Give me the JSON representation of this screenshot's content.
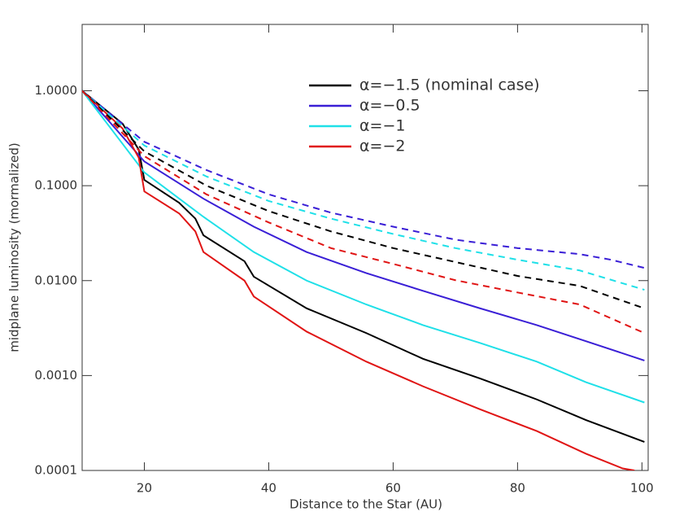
{
  "chart_data": {
    "type": "line",
    "xlabel": "Distance to the Star (AU)",
    "ylabel": "midplane luminosity (mormalized)",
    "xlim": [
      10,
      101
    ],
    "ylim": [
      0.0001,
      5
    ],
    "ylog": true,
    "xticks": [
      20,
      40,
      60,
      80,
      100
    ],
    "yticks": [
      {
        "value": 1,
        "label": "1.0000"
      },
      {
        "value": 0.1,
        "label": "0.1000"
      },
      {
        "value": 0.01,
        "label": "0.0100"
      },
      {
        "value": 0.001,
        "label": "0.0010"
      },
      {
        "value": 0.0001,
        "label": "0.0001"
      }
    ],
    "legend": "upper right",
    "series": [
      {
        "name": "α=−1.5 (nominal case)",
        "color": "#000000",
        "style": "solid",
        "x": [
          10,
          16.5,
          19.1,
          20,
          25.6,
          28.2,
          29.5,
          36.1,
          37.6,
          46.1,
          55.7,
          64.8,
          74,
          83.1,
          91,
          100.4
        ],
        "values": [
          1,
          0.45,
          0.24,
          0.115,
          0.066,
          0.045,
          0.03,
          0.016,
          0.011,
          0.0051,
          0.0028,
          0.0015,
          0.00093,
          0.00056,
          0.00034,
          0.0002
        ]
      },
      {
        "name": "α=−0.5",
        "color": "#3a1fd6",
        "style": "solid",
        "x": [
          10,
          20,
          29.5,
          37.6,
          46.1,
          55.7,
          64.8,
          74,
          83.1,
          91,
          100.4
        ],
        "values": [
          1,
          0.18,
          0.073,
          0.037,
          0.02,
          0.012,
          0.0078,
          0.0051,
          0.0034,
          0.0023,
          0.00144
        ]
      },
      {
        "name": "α=−1",
        "color": "#1fe0e8",
        "style": "solid",
        "x": [
          10,
          20,
          29.5,
          37.6,
          46.1,
          55.7,
          64.8,
          74,
          83.1,
          91,
          100.4
        ],
        "values": [
          1,
          0.138,
          0.047,
          0.02,
          0.01,
          0.0056,
          0.0034,
          0.0022,
          0.0014,
          0.00085,
          0.00052
        ]
      },
      {
        "name": "α=−2",
        "color": "#e01414",
        "style": "solid",
        "x": [
          10,
          16.5,
          19.1,
          20,
          25.6,
          28.2,
          29.5,
          36.1,
          37.6,
          46.1,
          55.7,
          64.8,
          74,
          83.1,
          91,
          96.9,
          98.8
        ],
        "values": [
          1,
          0.4,
          0.197,
          0.087,
          0.051,
          0.033,
          0.02,
          0.01,
          0.0068,
          0.0029,
          0.0014,
          0.00077,
          0.00044,
          0.00026,
          0.00015,
          0.000105,
          0.0001
        ]
      },
      {
        "color": "#3a1fd6",
        "style": "dashed",
        "x": [
          10,
          20,
          30,
          40,
          50,
          60,
          70,
          80,
          90,
          95,
          100.4
        ],
        "values": [
          1,
          0.29,
          0.146,
          0.081,
          0.052,
          0.037,
          0.027,
          0.022,
          0.019,
          0.0166,
          0.0136
        ]
      },
      {
        "color": "#1fe0e8",
        "style": "dashed",
        "x": [
          10,
          20,
          30,
          40,
          50,
          60,
          70,
          80,
          90,
          100.4
        ],
        "values": [
          1,
          0.265,
          0.125,
          0.069,
          0.045,
          0.031,
          0.022,
          0.0166,
          0.0128,
          0.008
        ]
      },
      {
        "color": "#000000",
        "style": "dashed",
        "x": [
          10,
          20,
          30,
          40,
          50,
          60,
          70,
          80,
          90,
          100.4
        ],
        "values": [
          1,
          0.23,
          0.1,
          0.054,
          0.033,
          0.022,
          0.0157,
          0.0112,
          0.0088,
          0.0051
        ]
      },
      {
        "color": "#e01414",
        "style": "dashed",
        "x": [
          10,
          20,
          30,
          40,
          50,
          60,
          70,
          80,
          90,
          100.4
        ],
        "values": [
          1,
          0.205,
          0.081,
          0.041,
          0.022,
          0.015,
          0.0101,
          0.0075,
          0.0056,
          0.0028
        ]
      }
    ]
  }
}
